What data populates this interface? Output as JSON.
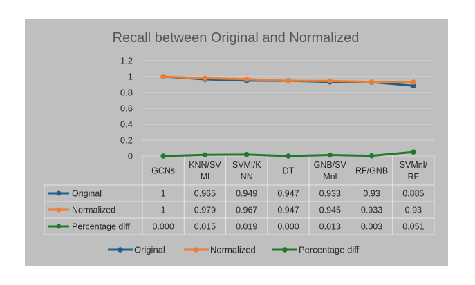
{
  "chart_data": {
    "type": "line",
    "title": "Recall  between Original and Normalized",
    "categories": [
      [
        "GCNs"
      ],
      [
        "KNN/SV",
        "Ml"
      ],
      [
        "SVMl/K",
        "NN"
      ],
      [
        "DT"
      ],
      [
        "GNB/SV",
        "Mnl"
      ],
      [
        "RF/GNB"
      ],
      [
        "SVMnl/",
        "RF"
      ]
    ],
    "yticks": [
      "0",
      "0.2",
      "0.4",
      "0.6",
      "0.8",
      "1",
      "1.2"
    ],
    "ylim": [
      0,
      1.2
    ],
    "grid": true,
    "legend_position": "bottom",
    "series": [
      {
        "name": "Original",
        "color": "#1f5f8b",
        "values": [
          1,
          0.965,
          0.949,
          0.947,
          0.933,
          0.93,
          0.885
        ],
        "labels": [
          "1",
          "0.965",
          "0.949",
          "0.947",
          "0.933",
          "0.93",
          "0.885"
        ]
      },
      {
        "name": "Normalized",
        "color": "#ed7d31",
        "values": [
          1,
          0.979,
          0.967,
          0.947,
          0.945,
          0.933,
          0.93
        ],
        "labels": [
          "1",
          "0.979",
          "0.967",
          "0.947",
          "0.945",
          "0.933",
          "0.93"
        ]
      },
      {
        "name": "Percentage diff",
        "color": "#1e7b2e",
        "values": [
          0.0,
          0.015,
          0.019,
          0.0,
          0.013,
          0.003,
          0.051
        ],
        "labels": [
          "0.000",
          "0.015",
          "0.019",
          "0.000",
          "0.013",
          "0.003",
          "0.051"
        ]
      }
    ]
  }
}
